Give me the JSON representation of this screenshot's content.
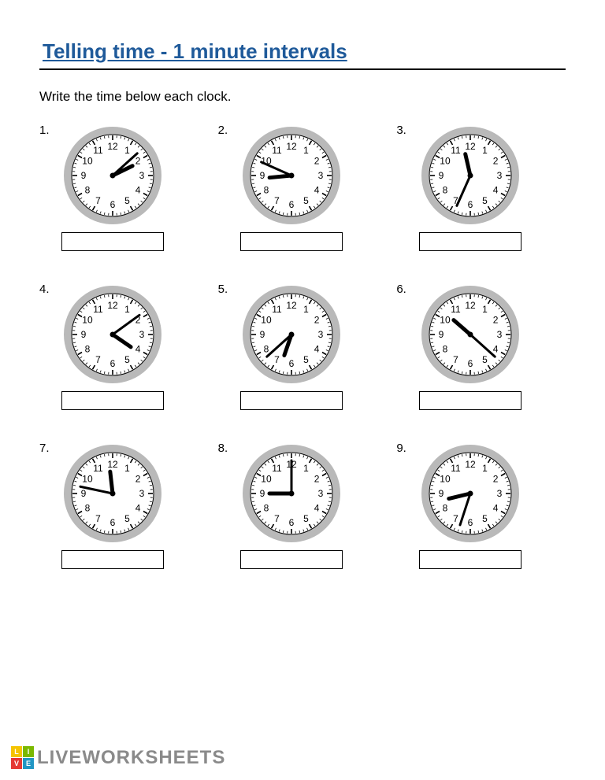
{
  "title": {
    "text": "Telling time - 1 minute intervals",
    "color": "#1f5a9a",
    "fontsize": 26
  },
  "instruction": "Write the time below each clock.",
  "clock_style": {
    "outer_radius": 62,
    "bezel_color": "#b9b9b9",
    "bezel_width": 10,
    "face_color": "#ffffff",
    "tick_color": "#000000",
    "number_color": "#000000",
    "number_fontsize": 12,
    "hour_hand_len": 28,
    "hour_hand_width": 5,
    "minute_hand_len": 42,
    "minute_hand_width": 3,
    "hand_color": "#000000"
  },
  "questions": [
    {
      "n": "1.",
      "hour": 2,
      "minute": 8
    },
    {
      "n": "2.",
      "hour": 8,
      "minute": 49
    },
    {
      "n": "3.",
      "hour": 11,
      "minute": 34
    },
    {
      "n": "4.",
      "hour": 4,
      "minute": 9
    },
    {
      "n": "5.",
      "hour": 6,
      "minute": 38
    },
    {
      "n": "6.",
      "hour": 10,
      "minute": 22
    },
    {
      "n": "7.",
      "hour": 11,
      "minute": 47
    },
    {
      "n": "8.",
      "hour": 9,
      "minute": 0
    },
    {
      "n": "9.",
      "hour": 8,
      "minute": 33
    }
  ],
  "footer": {
    "brand": "LIVEWORKSHEETS",
    "logo_colors": [
      "#f5c400",
      "#7ab800",
      "#e53935",
      "#2196c4"
    ],
    "logo_letters": [
      "L",
      "I",
      "V",
      "E"
    ],
    "text_color": "#8a8a8a"
  }
}
